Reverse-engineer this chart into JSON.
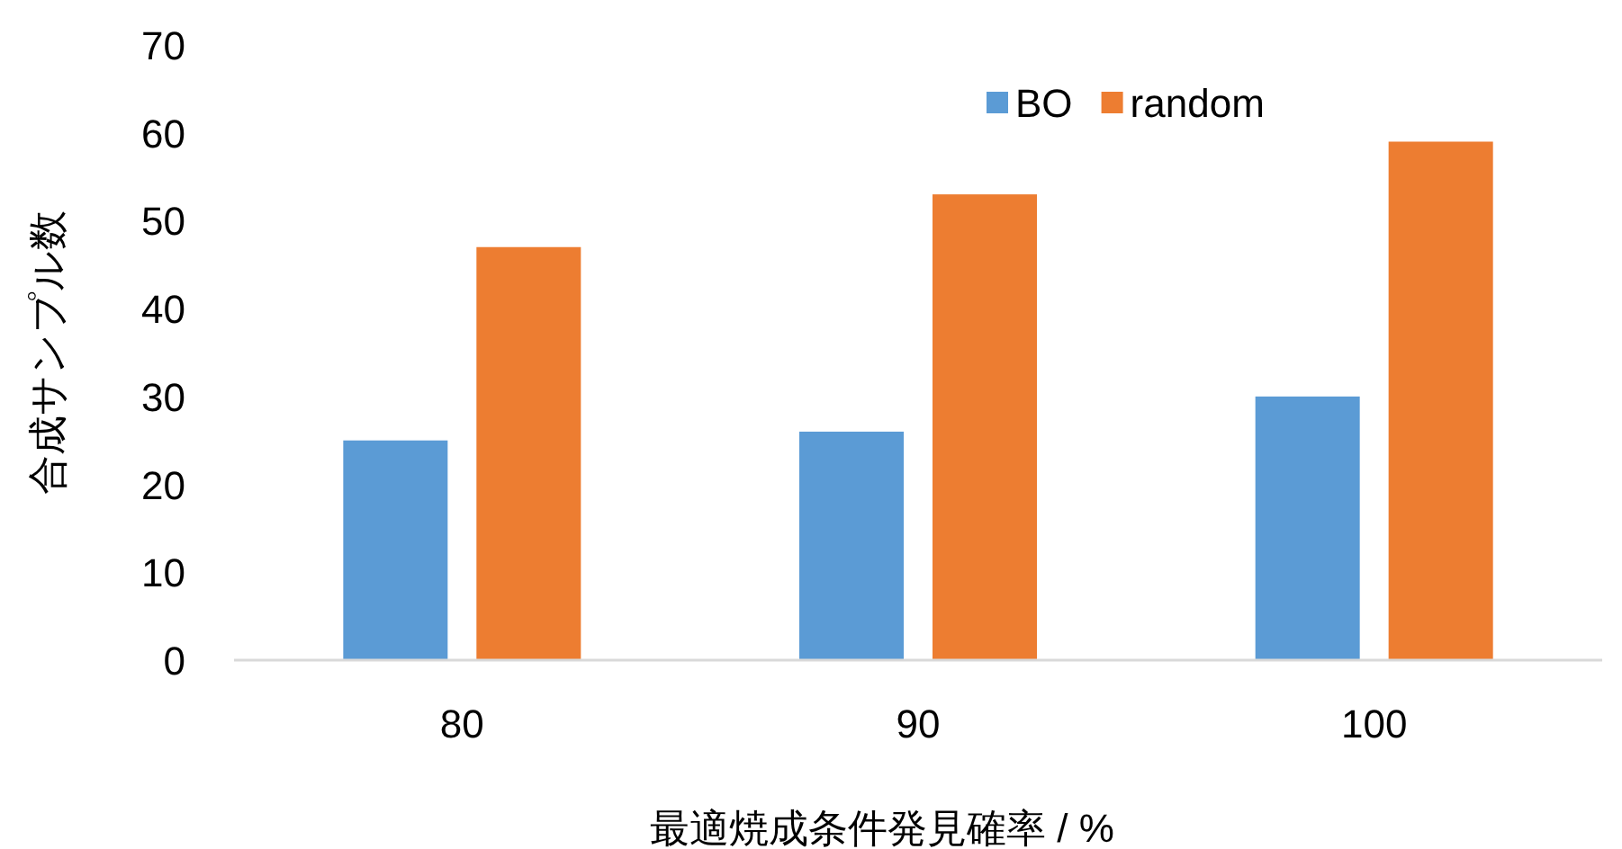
{
  "chart_data": {
    "type": "bar",
    "xlabel": "最適焼成条件発見確率 / %",
    "ylabel": "合成サンプル数",
    "categories": [
      "80",
      "90",
      "100"
    ],
    "series": [
      {
        "name": "BO",
        "color": "#5b9bd5",
        "values": [
          25,
          26,
          30
        ]
      },
      {
        "name": "random",
        "color": "#ed7d31",
        "values": [
          47,
          53,
          59
        ]
      }
    ],
    "ylim": [
      0,
      70
    ],
    "yticks": [
      0,
      10,
      20,
      30,
      40,
      50,
      60,
      70
    ],
    "legend": "top right"
  }
}
